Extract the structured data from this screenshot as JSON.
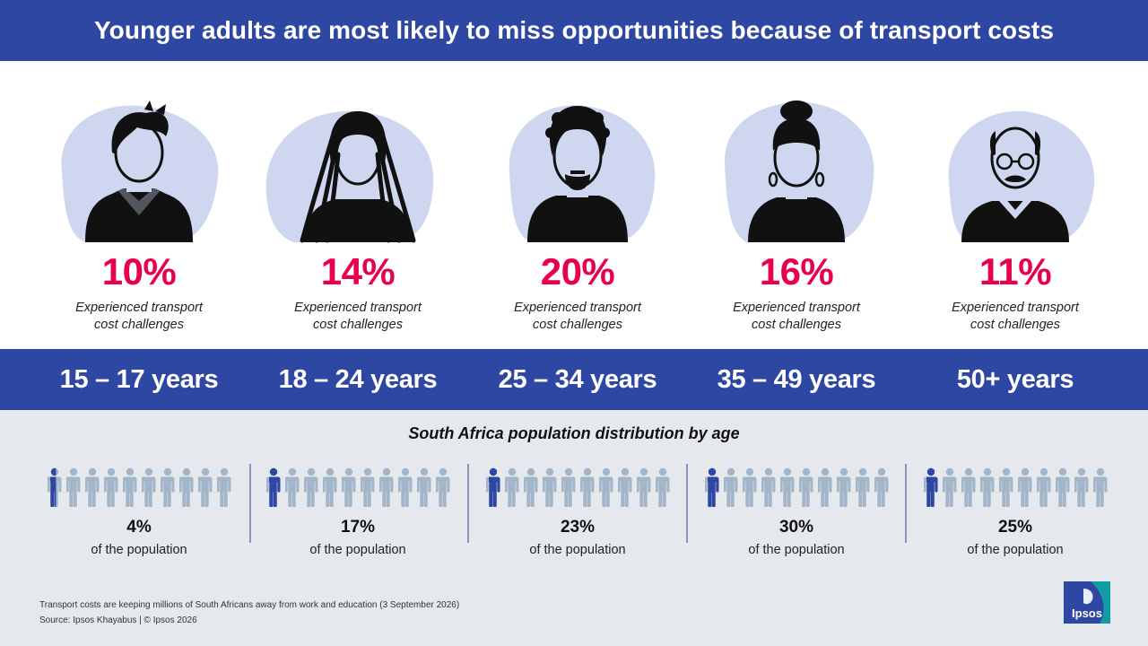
{
  "title": "Younger adults are most likely to miss opportunities because of transport costs",
  "colors": {
    "brand_blue": "#2e47a3",
    "highlight": "#e8004c",
    "avatar_bg": "#cfd6ef",
    "person_filled": "#2e47a3",
    "person_empty": "#a3b6c9",
    "panel_bg": "#e5e8ed",
    "logo_teal": "#0f9d9f"
  },
  "chart_data": [
    {
      "type": "bar",
      "title": "Younger adults are most likely to miss opportunities because of transport costs",
      "categories": [
        "15 – 17 years",
        "18 – 24 years",
        "25 – 34 years",
        "35 – 49 years",
        "50+ years"
      ],
      "values": [
        10,
        14,
        20,
        16,
        11
      ],
      "value_labels": [
        "10%",
        "14%",
        "20%",
        "16%",
        "11%"
      ],
      "value_caption": "Experienced transport cost challenges",
      "unit": "%"
    },
    {
      "type": "bar",
      "title": "South Africa population distribution by age",
      "categories": [
        "15 – 17 years",
        "18 – 24 years",
        "25 – 34 years",
        "35 – 49 years",
        "50+ years"
      ],
      "values": [
        4,
        17,
        23,
        30,
        25
      ],
      "value_labels": [
        "4%",
        "17%",
        "23%",
        "30%",
        "25%"
      ],
      "value_caption": "of the population",
      "unit": "%",
      "icons_per_group": 10
    }
  ],
  "personas": [
    {
      "icon": "teen-boy-icon",
      "pct": "10%",
      "desc": "Experienced transport cost challenges",
      "age": "15 – 17 years"
    },
    {
      "icon": "young-woman-dreadlocks-icon",
      "pct": "14%",
      "desc": "Experienced transport cost challenges",
      "age": "18 – 24 years"
    },
    {
      "icon": "bearded-man-icon",
      "pct": "20%",
      "desc": "Experienced transport cost challenges",
      "age": "25 – 34 years"
    },
    {
      "icon": "woman-bun-earrings-icon",
      "pct": "16%",
      "desc": "Experienced transport cost challenges",
      "age": "35 – 49 years"
    },
    {
      "icon": "older-man-glasses-icon",
      "pct": "11%",
      "desc": "Experienced transport cost challenges",
      "age": "50+ years"
    }
  ],
  "population": {
    "title": "South Africa population distribution by age",
    "groups": [
      {
        "pct": "4%",
        "sub": "of the population",
        "value": 4
      },
      {
        "pct": "17%",
        "sub": "of the population",
        "value": 17
      },
      {
        "pct": "23%",
        "sub": "of the population",
        "value": 23
      },
      {
        "pct": "30%",
        "sub": "of the population",
        "value": 30
      },
      {
        "pct": "25%",
        "sub": "of the population",
        "value": 25
      }
    ]
  },
  "footer": {
    "line1": "Transport costs are keeping millions of South Africans away from work and education (3 September 2026)",
    "line2": "Source: Ipsos Khayabus  |  © Ipsos 2026"
  },
  "logo": {
    "text": "Ipsos",
    "icon": "ipsos-logo-icon"
  }
}
